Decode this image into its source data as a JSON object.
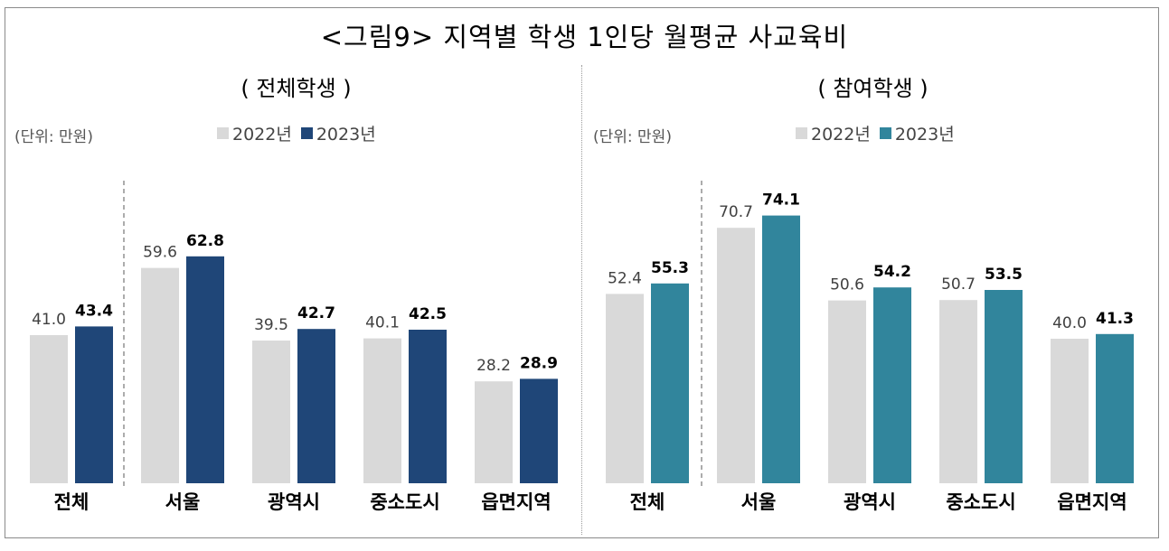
{
  "title": "<그림9> 지역별 학생 1인당 월평균 사교육비",
  "chart_data": [
    {
      "type": "bar",
      "title": "( 전체학생 )",
      "unit": "(단위: 만원)",
      "categories": [
        "전체",
        "서울",
        "광역시",
        "중소도시",
        "읍면지역"
      ],
      "series": [
        {
          "name": "2022년",
          "values": [
            41.0,
            59.6,
            39.5,
            40.1,
            28.2
          ],
          "color": "#d9d9d9"
        },
        {
          "name": "2023년",
          "values": [
            43.4,
            62.8,
            42.7,
            42.5,
            28.9
          ],
          "color": "#1f4678"
        }
      ],
      "ylim": [
        0,
        100
      ],
      "xlabel": "",
      "ylabel": "",
      "legend": "top"
    },
    {
      "type": "bar",
      "title": "( 참여학생 )",
      "unit": "(단위: 만원)",
      "categories": [
        "전체",
        "서울",
        "광역시",
        "중소도시",
        "읍면지역"
      ],
      "series": [
        {
          "name": "2022년",
          "values": [
            52.4,
            70.7,
            50.6,
            50.7,
            40.0
          ],
          "color": "#d9d9d9"
        },
        {
          "name": "2023년",
          "values": [
            55.3,
            74.1,
            54.2,
            53.5,
            41.3
          ],
          "color": "#31859c"
        }
      ],
      "ylim": [
        0,
        100
      ],
      "xlabel": "",
      "ylabel": "",
      "legend": "top"
    }
  ]
}
